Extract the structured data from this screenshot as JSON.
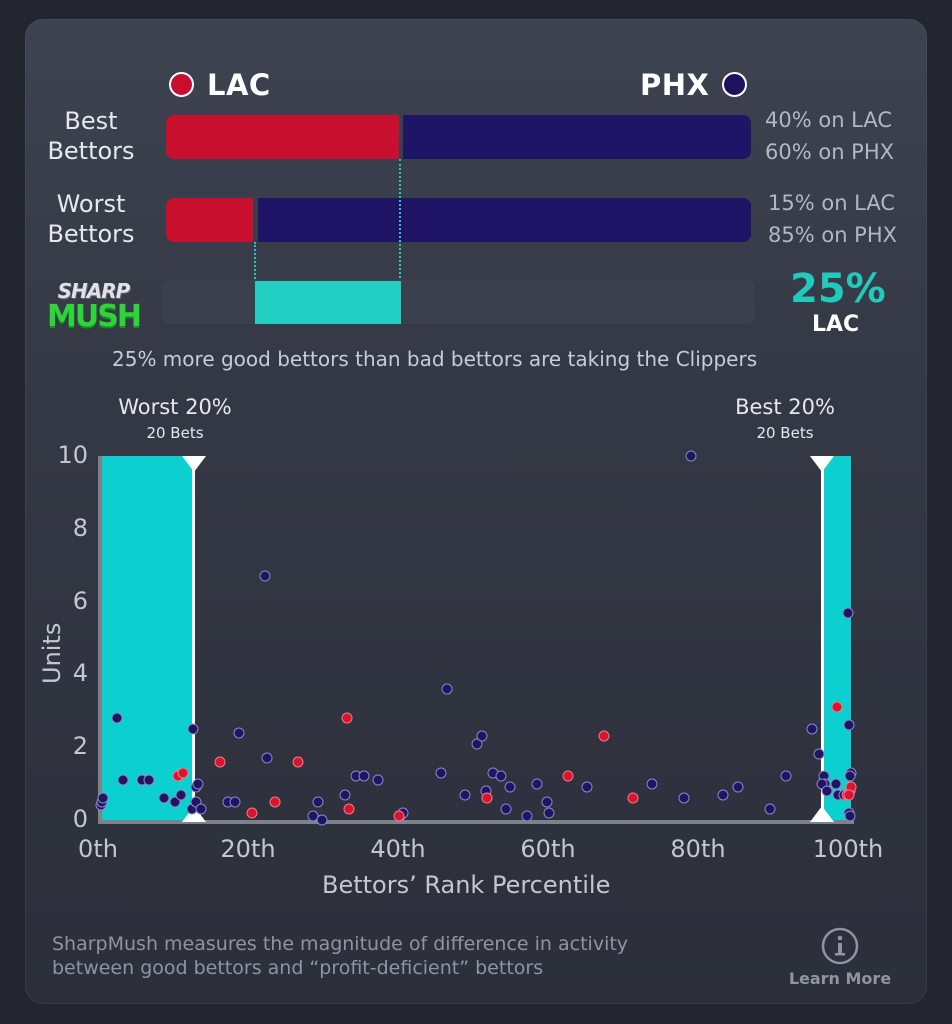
{
  "teams": {
    "left": {
      "abbr": "LAC",
      "color": "#c8102e"
    },
    "right": {
      "abbr": "PHX",
      "color": "#1d1160"
    }
  },
  "rows": [
    {
      "label_line1": "Best",
      "label_line2": "Bettors",
      "lac_pct": 40,
      "phx_pct": 60,
      "lac_text": "40% on LAC",
      "phx_text": "60% on PHX"
    },
    {
      "label_line1": "Worst",
      "label_line2": "Bettors",
      "lac_pct": 15,
      "phx_pct": 85,
      "lac_text": "15% on LAC",
      "phx_text": "85% on PHX"
    }
  ],
  "sharpmush": {
    "logo_top": "SHARP",
    "logo_bottom": "MUSH",
    "value": "25%",
    "team": "LAC",
    "accent": "#22c9bd",
    "summary": "25% more good bettors than bad bettors are taking the Clippers"
  },
  "zones": {
    "worst": {
      "title": "Worst 20%",
      "sub": "20 Bets"
    },
    "best": {
      "title": "Best 20%",
      "sub": "20 Bets"
    }
  },
  "footer": {
    "line1": "SharpMush measures the magnitude of difference in activity",
    "line2": "between good bettors and “profit-deficient” bettors",
    "learn_more": "Learn More"
  },
  "chart_data": {
    "type": "scatter",
    "title": "",
    "xlabel": "Bettors’ Rank Percentile",
    "ylabel": "Units",
    "xlim": [
      0,
      100
    ],
    "ylim": [
      0,
      10
    ],
    "x_ticks": [
      "0th",
      "20th",
      "40th",
      "60th",
      "80th",
      "100th"
    ],
    "y_ticks": [
      "0",
      "2",
      "4",
      "6",
      "8",
      "10"
    ],
    "grid": false,
    "highlight_regions": [
      {
        "name": "Worst 20%",
        "x_from": 0,
        "x_to": 12.5,
        "color": "#0ccfcf"
      },
      {
        "name": "Best 20%",
        "x_from": 96.8,
        "x_to": 100.3,
        "color": "#0ccfcf"
      }
    ],
    "series": [
      {
        "name": "PHX",
        "color": "#1d1160",
        "points": [
          [
            0.1,
            0.4
          ],
          [
            0.3,
            0.5
          ],
          [
            0.4,
            0.6
          ],
          [
            2.2,
            2.8
          ],
          [
            3,
            1.1
          ],
          [
            5.6,
            1.1
          ],
          [
            6.5,
            1.1
          ],
          [
            8.5,
            0.6
          ],
          [
            10,
            0.5
          ],
          [
            10.8,
            0.7
          ],
          [
            12.3,
            0.3
          ],
          [
            12.8,
            0.9
          ],
          [
            13,
            1.0
          ],
          [
            12.4,
            2.5
          ],
          [
            12.8,
            0.5
          ],
          [
            13.4,
            0.3
          ],
          [
            17,
            0.5
          ],
          [
            18,
            0.5
          ],
          [
            18.5,
            2.4
          ],
          [
            22,
            6.7
          ],
          [
            22.2,
            1.7
          ],
          [
            28.4,
            0.1
          ],
          [
            29,
            0.5
          ],
          [
            29.6,
            0.0
          ],
          [
            32.6,
            0.7
          ],
          [
            34.1,
            1.2
          ],
          [
            35.2,
            1.2
          ],
          [
            37,
            1.1
          ],
          [
            40,
            0.1
          ],
          [
            40.4,
            0.2
          ],
          [
            45.4,
            1.3
          ],
          [
            46.3,
            3.6
          ],
          [
            48.6,
            0.7
          ],
          [
            50.3,
            2.1
          ],
          [
            50.9,
            2.3
          ],
          [
            51.4,
            0.8
          ],
          [
            52.4,
            1.3
          ],
          [
            53.5,
            1.2
          ],
          [
            54.1,
            0.3
          ],
          [
            54.6,
            0.9
          ],
          [
            56.9,
            0.1
          ],
          [
            58.2,
            1.0
          ],
          [
            59.6,
            0.5
          ],
          [
            59.8,
            0.2
          ],
          [
            64.9,
            0.9
          ],
          [
            73.6,
            1.0
          ],
          [
            77.9,
            0.6
          ],
          [
            78.8,
            10.0
          ],
          [
            83.1,
            0.7
          ],
          [
            85,
            0.9
          ],
          [
            89.3,
            0.3
          ],
          [
            91.5,
            1.2
          ],
          [
            94.9,
            2.5
          ],
          [
            95.9,
            1.8
          ],
          [
            96.5,
            1.2
          ],
          [
            96.7,
            1.0
          ],
          [
            96.2,
            1.0
          ],
          [
            96.9,
            0.8
          ],
          [
            98.4,
            0.7
          ],
          [
            98.1,
            1.0
          ],
          [
            99.2,
            0.7
          ],
          [
            99.7,
            5.7
          ],
          [
            99.9,
            2.6
          ],
          [
            100.1,
            1.3
          ],
          [
            100,
            1.2
          ],
          [
            99.8,
            0.2
          ],
          [
            100,
            0.1
          ]
        ]
      },
      {
        "name": "LAC",
        "color": "#c8102e",
        "points": [
          [
            10.4,
            1.2
          ],
          [
            11,
            1.3
          ],
          [
            16,
            1.6
          ],
          [
            20.3,
            0.2
          ],
          [
            23.3,
            0.5
          ],
          [
            26.4,
            1.6
          ],
          [
            32.9,
            2.8
          ],
          [
            33.2,
            0.3
          ],
          [
            39.8,
            0.1
          ],
          [
            51.6,
            0.6
          ],
          [
            62.4,
            1.2
          ],
          [
            67.2,
            2.3
          ],
          [
            71,
            0.6
          ],
          [
            98.3,
            3.1
          ],
          [
            99.6,
            0.7
          ],
          [
            100,
            0.8
          ],
          [
            100.1,
            0.9
          ],
          [
            99.9,
            0.7
          ]
        ]
      }
    ]
  }
}
